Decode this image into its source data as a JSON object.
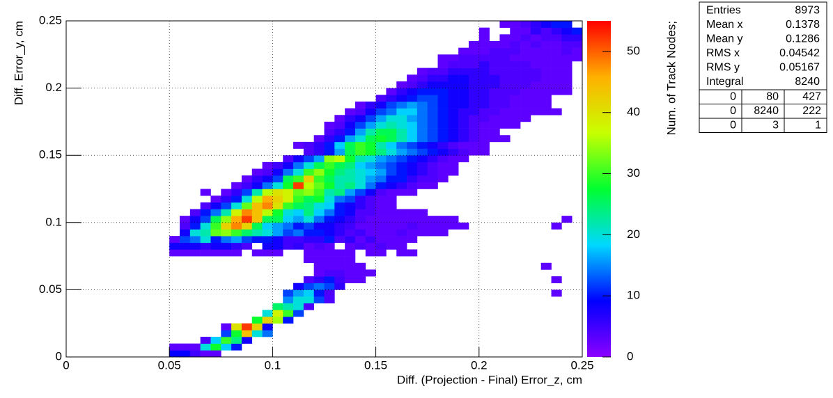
{
  "chart_data": {
    "type": "heatmap2d",
    "x_label": "Diff. (Projection - Final) Error_z, cm",
    "y_label": "Diff. Error_y, cm",
    "z_label": "Num. of Track Nodes;",
    "xlim": [
      0,
      0.25
    ],
    "ylim": [
      0,
      0.25
    ],
    "zlim": [
      0,
      55
    ],
    "xticks": [
      0,
      0.05,
      0.1,
      0.15,
      0.2,
      0.25
    ],
    "yticks": [
      0,
      0.05,
      0.1,
      0.15,
      0.2,
      0.25
    ],
    "zticks": [
      0,
      10,
      20,
      30,
      40,
      50
    ],
    "grid": true,
    "xbin": 0.005,
    "ybin": 0.005,
    "palette": [
      "#8b00ff",
      "#0000ff",
      "#00d8ff",
      "#00ff30",
      "#c8ff00",
      "#ffb000",
      "#ff0000"
    ],
    "rows": [
      {
        "y": 0,
        "x0": 0.05,
        "values": [
          9,
          9,
          5,
          3,
          3
        ]
      },
      {
        "y": 0.005,
        "x0": 0.05,
        "values": [
          3,
          3,
          3,
          20,
          28,
          18,
          10
        ]
      },
      {
        "y": 0.01,
        "x0": 0.065,
        "values": [
          4,
          18,
          30,
          24,
          8
        ]
      },
      {
        "y": 0.015,
        "x0": 0.075,
        "values": [
          12,
          28,
          44,
          20,
          14
        ]
      },
      {
        "y": 0.02,
        "x0": 0.075,
        "values": [
          3,
          40,
          52,
          42,
          8
        ]
      },
      {
        "y": 0.025,
        "x0": 0.09,
        "values": [
          28,
          42,
          35,
          10
        ]
      },
      {
        "y": 0.03,
        "x0": 0.095,
        "values": [
          20,
          38,
          30,
          12
        ]
      },
      {
        "y": 0.035,
        "x0": 0.1,
        "values": [
          25,
          22,
          20,
          4
        ]
      },
      {
        "y": 0.04,
        "x0": 0.105,
        "values": [
          15,
          20,
          20,
          12,
          4
        ]
      },
      {
        "y": 0.045,
        "x0": 0.105,
        "values": [
          12,
          16,
          18,
          10,
          4
        ]
      },
      {
        "y": 0.05,
        "x0": 0.11,
        "values": [
          8,
          12,
          14,
          12,
          6
        ]
      },
      {
        "y": 0.055,
        "x0": 0.115,
        "values": [
          4,
          6,
          10,
          5,
          3,
          3
        ]
      },
      {
        "y": 0.06,
        "x0": 0.12,
        "values": [
          3,
          4,
          4,
          3,
          3,
          3
        ]
      },
      {
        "y": 0.065,
        "x0": 0.12,
        "values": [
          3,
          3,
          3,
          3,
          3
        ]
      },
      {
        "y": 0.07,
        "x0": 0.115,
        "values": [
          3,
          3,
          3,
          3,
          3
        ]
      },
      {
        "y": 0.075,
        "x0": 0.05,
        "values": [
          3,
          3,
          3,
          3,
          3,
          3,
          3,
          null,
          3,
          3,
          3,
          null,
          null,
          3,
          3,
          3,
          3,
          3,
          null,
          3,
          3,
          null,
          3,
          3
        ]
      },
      {
        "y": 0.08,
        "x0": 0.05,
        "values": [
          8,
          8,
          8,
          6,
          8,
          8,
          6,
          4,
          null,
          8,
          8,
          5,
          6,
          3,
          4,
          3,
          null,
          3,
          4,
          3,
          4,
          3,
          3
        ]
      },
      {
        "y": 0.085,
        "x0": 0.05,
        "values": [
          3,
          12,
          14,
          20,
          10,
          14,
          16,
          12,
          10,
          10,
          8,
          5,
          5,
          6,
          6,
          10,
          4,
          6,
          3,
          5,
          3,
          3,
          3,
          3
        ]
      },
      {
        "y": 0.09,
        "x0": 0.05,
        "values": [
          null,
          8,
          20,
          22,
          32,
          34,
          30,
          25,
          22,
          20,
          16,
          12,
          14,
          10,
          10,
          8,
          6,
          4,
          5,
          3,
          3,
          3,
          4,
          3,
          3,
          3,
          3
        ]
      },
      {
        "y": 0.095,
        "x0": 0.05,
        "values": [
          null,
          4,
          10,
          20,
          30,
          42,
          48,
          42,
          26,
          18,
          16,
          14,
          10,
          12,
          8,
          8,
          6,
          5,
          3,
          3,
          3,
          3,
          3,
          4,
          3,
          3,
          3,
          3,
          3
        ]
      },
      {
        "y": 0.1,
        "x0": 0.055,
        "values": [
          3,
          8,
          12,
          26,
          34,
          46,
          52,
          44,
          26,
          26,
          18,
          16,
          20,
          14,
          10,
          8,
          6,
          4,
          3,
          3,
          3,
          3,
          3,
          3,
          3,
          3,
          3
        ]
      },
      {
        "y": 0.105,
        "x0": 0.06,
        "values": [
          4,
          10,
          14,
          22,
          38,
          48,
          44,
          36,
          28,
          20,
          18,
          24,
          18,
          14,
          10,
          8,
          4,
          4,
          3,
          3,
          3,
          3,
          3
        ]
      },
      {
        "y": 0.11,
        "x0": 0.065,
        "values": [
          4,
          8,
          12,
          20,
          32,
          44,
          48,
          40,
          30,
          26,
          24,
          20,
          18,
          10,
          8,
          6,
          4,
          3,
          3
        ]
      },
      {
        "y": 0.115,
        "x0": 0.07,
        "values": [
          3,
          6,
          10,
          20,
          36,
          46,
          42,
          38,
          30,
          26,
          28,
          20,
          14,
          12,
          6,
          4,
          3,
          3
        ]
      },
      {
        "y": 0.12,
        "x0": 0.065,
        "values": [
          3,
          null,
          3,
          6,
          12,
          22,
          36,
          40,
          38,
          32,
          34,
          30,
          22,
          24,
          16,
          12,
          8,
          4,
          3,
          3,
          3
        ]
      },
      {
        "y": 0.125,
        "x0": 0.08,
        "values": [
          3,
          5,
          8,
          14,
          20,
          28,
          52,
          36,
          32,
          28,
          22,
          24,
          20,
          14,
          10,
          8,
          6,
          4,
          3,
          3
        ]
      },
      {
        "y": 0.13,
        "x0": 0.085,
        "values": [
          3,
          6,
          8,
          12,
          26,
          30,
          42,
          30,
          26,
          22,
          22,
          20,
          16,
          14,
          10,
          10,
          6,
          4,
          4,
          3
        ]
      },
      {
        "y": 0.135,
        "x0": 0.09,
        "values": [
          3,
          4,
          8,
          14,
          20,
          30,
          34,
          28,
          24,
          22,
          20,
          18,
          16,
          12,
          10,
          8,
          6,
          4,
          3,
          3
        ]
      },
      {
        "y": 0.14,
        "x0": 0.095,
        "values": [
          3,
          5,
          8,
          14,
          20,
          26,
          30,
          26,
          24,
          18,
          16,
          14,
          12,
          10,
          8,
          6,
          4,
          3,
          3
        ]
      },
      {
        "y": 0.145,
        "x0": 0.105,
        "values": [
          4,
          8,
          12,
          16,
          34,
          36,
          28,
          22,
          20,
          16,
          14,
          12,
          10,
          8,
          6,
          4,
          3,
          3
        ]
      },
      {
        "y": 0.15,
        "x0": 0.115,
        "values": [
          4,
          6,
          10,
          16,
          26,
          30,
          28,
          24,
          20,
          16,
          14,
          12,
          10,
          8,
          6,
          4,
          3,
          3
        ]
      },
      {
        "y": 0.155,
        "x0": 0.11,
        "values": [
          3,
          4,
          6,
          10,
          18,
          26,
          30,
          28,
          22,
          18,
          14,
          12,
          10,
          8,
          6,
          4,
          3,
          3,
          3
        ]
      },
      {
        "y": 0.16,
        "x0": 0.12,
        "values": [
          3,
          6,
          10,
          16,
          20,
          26,
          28,
          26,
          22,
          18,
          14,
          12,
          10,
          8,
          6,
          4,
          3,
          3,
          3
        ]
      },
      {
        "y": 0.165,
        "x0": 0.125,
        "values": [
          4,
          6,
          10,
          16,
          22,
          26,
          26,
          22,
          18,
          14,
          12,
          10,
          8,
          6,
          4,
          3,
          3
        ]
      },
      {
        "y": 0.17,
        "x0": 0.125,
        "values": [
          3,
          4,
          8,
          12,
          16,
          20,
          22,
          20,
          18,
          14,
          12,
          10,
          8,
          6,
          4,
          3,
          3,
          3,
          3
        ]
      },
      {
        "y": 0.175,
        "x0": 0.13,
        "values": [
          3,
          6,
          8,
          12,
          16,
          20,
          20,
          16,
          14,
          12,
          10,
          8,
          6,
          4,
          4,
          3,
          3,
          3,
          3
        ]
      },
      {
        "y": 0.18,
        "x0": 0.135,
        "values": [
          3,
          4,
          8,
          12,
          14,
          18,
          18,
          14,
          12,
          10,
          8,
          6,
          6,
          4,
          4,
          3,
          3,
          3,
          3,
          3,
          3
        ]
      },
      {
        "y": 0.185,
        "x0": 0.14,
        "values": [
          3,
          6,
          8,
          12,
          14,
          16,
          14,
          12,
          10,
          8,
          8,
          6,
          6,
          4,
          4,
          3,
          3,
          3,
          3
        ]
      },
      {
        "y": 0.19,
        "x0": 0.15,
        "values": [
          4,
          6,
          8,
          10,
          12,
          12,
          10,
          8,
          8,
          6,
          6,
          4,
          4,
          3,
          3,
          3,
          3
        ]
      },
      {
        "y": 0.195,
        "x0": 0.155,
        "values": [
          3,
          6,
          8,
          10,
          10,
          10,
          8,
          8,
          6,
          6,
          4,
          4,
          4,
          3,
          3,
          3,
          3,
          3
        ]
      },
      {
        "y": 0.2,
        "x0": 0.16,
        "values": [
          3,
          4,
          6,
          8,
          8,
          8,
          8,
          6,
          6,
          6,
          4,
          4,
          4,
          3,
          3,
          3,
          3
        ]
      },
      {
        "y": 0.205,
        "x0": 0.165,
        "values": [
          3,
          4,
          6,
          6,
          8,
          8,
          6,
          6,
          6,
          4,
          4,
          4,
          4,
          3,
          3,
          3
        ]
      },
      {
        "y": 0.21,
        "x0": 0.17,
        "values": [
          3,
          4,
          4,
          6,
          6,
          6,
          6,
          4,
          4,
          4,
          4,
          4,
          3,
          3,
          3
        ]
      },
      {
        "y": 0.215,
        "x0": 0.18,
        "values": [
          3,
          4,
          4,
          4,
          6,
          4,
          4,
          4,
          4,
          3,
          3,
          3,
          3
        ]
      },
      {
        "y": 0.22,
        "x0": 0.18,
        "values": [
          3,
          3,
          4,
          4,
          4,
          4,
          4,
          3,
          3,
          3,
          3,
          3,
          3,
          3
        ]
      },
      {
        "y": 0.225,
        "x0": 0.19,
        "values": [
          3,
          3,
          3,
          4,
          4,
          4,
          3,
          3,
          3,
          3,
          4,
          3
        ]
      },
      {
        "y": 0.23,
        "x0": 0.195,
        "values": [
          3,
          3,
          3,
          3,
          4,
          3,
          4,
          3,
          3,
          4,
          4
        ]
      },
      {
        "y": 0.235,
        "x0": 0.2,
        "values": [
          3,
          null,
          3,
          3,
          4,
          3,
          4,
          4,
          6,
          6
        ]
      },
      {
        "y": 0.24,
        "x0": 0.2,
        "values": [
          3,
          null,
          null,
          3,
          3,
          6,
          4,
          6,
          8,
          10
        ]
      },
      {
        "y": 0.245,
        "x0": 0.21,
        "values": [
          3,
          3,
          4,
          6,
          8,
          10,
          10
        ]
      },
      {
        "y": 0.1,
        "x0": 0.24,
        "values": [
          3
        ]
      },
      {
        "y": 0.095,
        "x0": 0.235,
        "values": [
          3
        ]
      },
      {
        "y": 0.065,
        "x0": 0.23,
        "values": [
          3
        ]
      },
      {
        "y": 0.055,
        "x0": 0.235,
        "values": [
          3
        ]
      },
      {
        "y": 0.045,
        "x0": 0.235,
        "values": [
          3
        ]
      }
    ],
    "stats": {
      "rows": [
        [
          "Entries",
          8973
        ],
        [
          "Mean x",
          0.1378
        ],
        [
          "Mean y",
          0.1286
        ],
        [
          "RMS x",
          0.04542
        ],
        [
          "RMS y",
          0.05167
        ],
        [
          "Integral",
          8240
        ]
      ],
      "table": [
        [
          0,
          80,
          427
        ],
        [
          0,
          8240,
          222
        ],
        [
          0,
          3,
          1
        ]
      ]
    }
  }
}
